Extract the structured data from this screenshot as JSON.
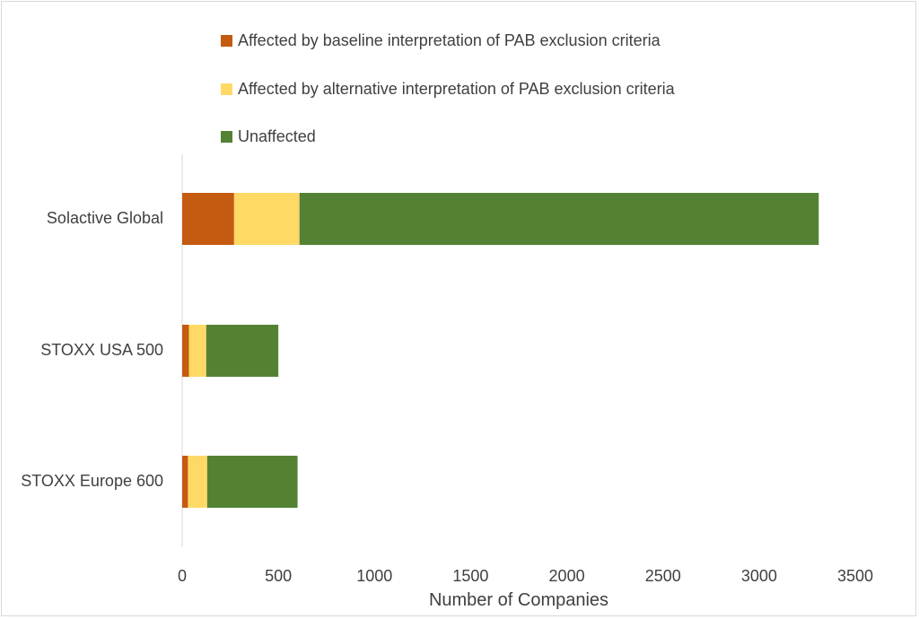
{
  "chart_data": {
    "type": "bar",
    "orientation": "horizontal",
    "stacked": true,
    "categories": [
      "Solactive Global",
      "STOXX USA 500",
      "STOXX Europe 600"
    ],
    "series": [
      {
        "name": "Affected by baseline interpretation of PAB exclusion criteria",
        "color": "#C55A11",
        "values": [
          270,
          35,
          30
        ]
      },
      {
        "name": "Affected by alternative interpretation of PAB exclusion criteria",
        "color": "#FFD966",
        "values": [
          340,
          90,
          100
        ]
      },
      {
        "name": "Unaffected",
        "color": "#548235",
        "values": [
          2700,
          375,
          470
        ]
      }
    ],
    "xlabel": "Number of Companies",
    "ylabel": "",
    "title": "",
    "xlim": [
      0,
      3500
    ],
    "xticks": [
      "0",
      "500",
      "1000",
      "1500",
      "2000",
      "2500",
      "3000",
      "3500"
    ],
    "grid": false,
    "legend": "top"
  }
}
